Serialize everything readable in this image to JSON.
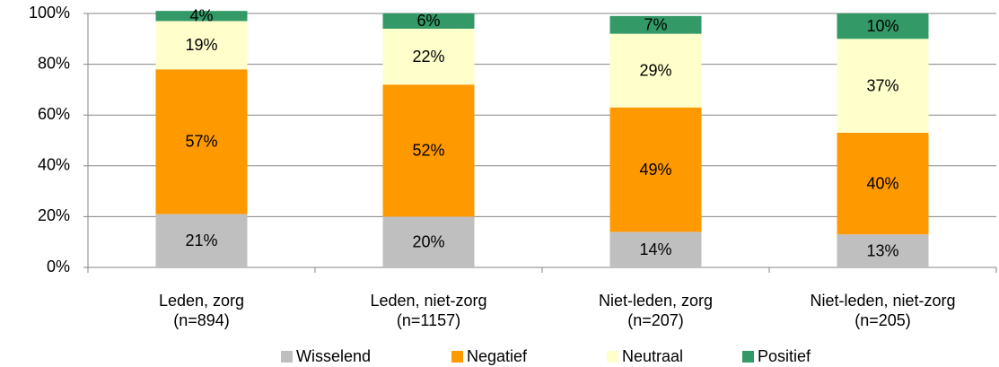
{
  "chart_data": {
    "type": "stacked_bar",
    "categories": [
      [
        "Leden, zorg",
        "(n=894)"
      ],
      [
        "Leden, niet-zorg",
        "(n=1157)"
      ],
      [
        "Niet-leden, zorg",
        "(n=207)"
      ],
      [
        "Niet-leden, niet-zorg",
        "(n=205)"
      ]
    ],
    "series": [
      {
        "name": "Wisselend",
        "color": "#bfbfbf",
        "values": [
          21,
          20,
          14,
          13
        ],
        "value_labels": [
          "21%",
          "20%",
          "14%",
          "13%"
        ]
      },
      {
        "name": "Negatief",
        "color": "#ff9900",
        "values": [
          57,
          52,
          49,
          40
        ],
        "value_labels": [
          "57%",
          "52%",
          "49%",
          "40%"
        ]
      },
      {
        "name": "Neutraal",
        "color": "#ffffcc",
        "values": [
          19,
          22,
          29,
          37
        ],
        "value_labels": [
          "19%",
          "22%",
          "29%",
          "37%"
        ]
      },
      {
        "name": "Positief",
        "color": "#339966",
        "values": [
          4,
          6,
          7,
          10
        ],
        "value_labels": [
          "4%",
          "6%",
          "7%",
          "10%"
        ]
      }
    ],
    "ylim": [
      0,
      100
    ],
    "yticks": [
      {
        "value": 0,
        "label": "0%"
      },
      {
        "value": 20,
        "label": "20%"
      },
      {
        "value": 40,
        "label": "40%"
      },
      {
        "value": 60,
        "label": "60%"
      },
      {
        "value": 80,
        "label": "80%"
      },
      {
        "value": 100,
        "label": "100%"
      }
    ],
    "grid": true,
    "legend": "bottom"
  }
}
